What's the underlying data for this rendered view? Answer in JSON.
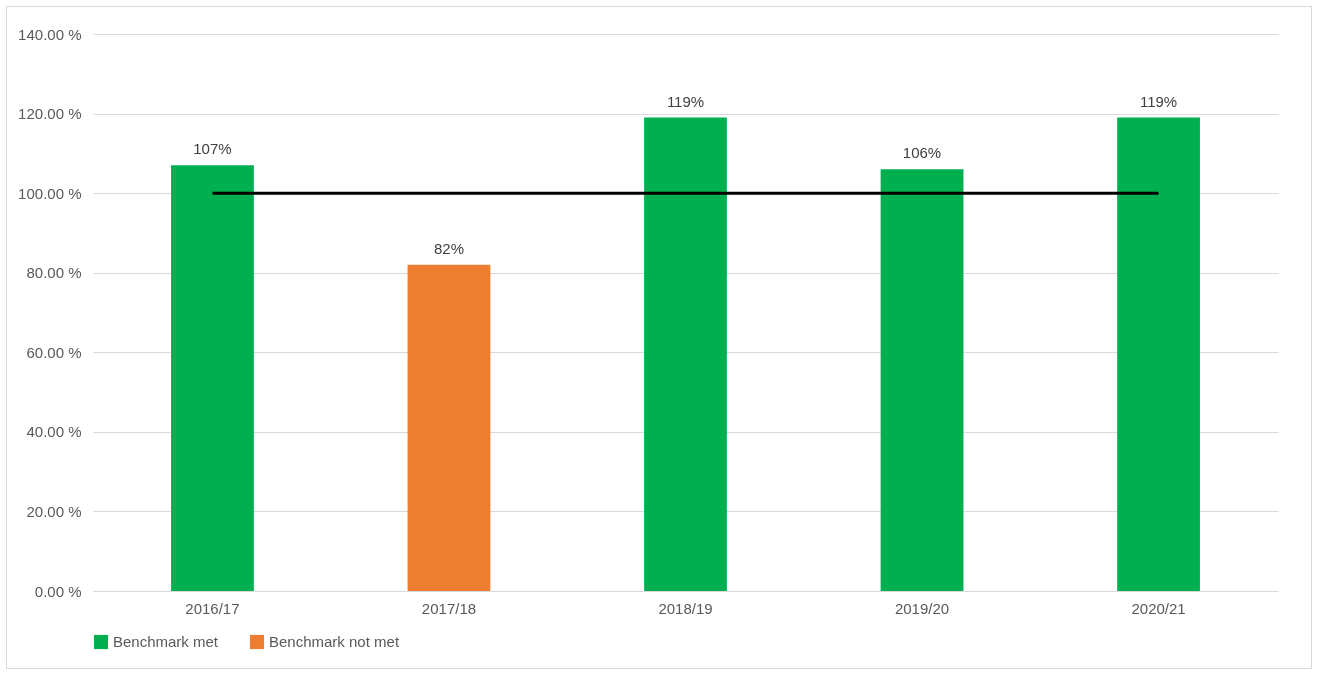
{
  "chart_data": {
    "type": "bar",
    "categories": [
      "2016/17",
      "2017/18",
      "2018/19",
      "2019/20",
      "2020/21"
    ],
    "series": [
      {
        "name": "Benchmark met",
        "color": "#00b050",
        "values": [
          107,
          null,
          119,
          106,
          119
        ],
        "value_labels": [
          "107%",
          null,
          "119%",
          "106%",
          "119%"
        ]
      },
      {
        "name": "Benchmark not met",
        "color": "#ed7d31",
        "values": [
          null,
          82,
          null,
          null,
          null
        ],
        "value_labels": [
          null,
          "82%",
          null,
          null,
          null
        ]
      }
    ],
    "ylim": [
      0,
      140
    ],
    "yticks": [
      {
        "value": 0,
        "label": "0.00 %"
      },
      {
        "value": 20,
        "label": "20.00 %"
      },
      {
        "value": 40,
        "label": "40.00 %"
      },
      {
        "value": 60,
        "label": "60.00 %"
      },
      {
        "value": 80,
        "label": "80.00 %"
      },
      {
        "value": 100,
        "label": "100.00 %"
      },
      {
        "value": 120,
        "label": "120.00 %"
      },
      {
        "value": 140,
        "label": "140.00 %"
      }
    ],
    "ref_lines": [
      {
        "axis": "y",
        "value": 100,
        "color": "#000000"
      }
    ],
    "grid": "y",
    "legend": "bottom"
  }
}
